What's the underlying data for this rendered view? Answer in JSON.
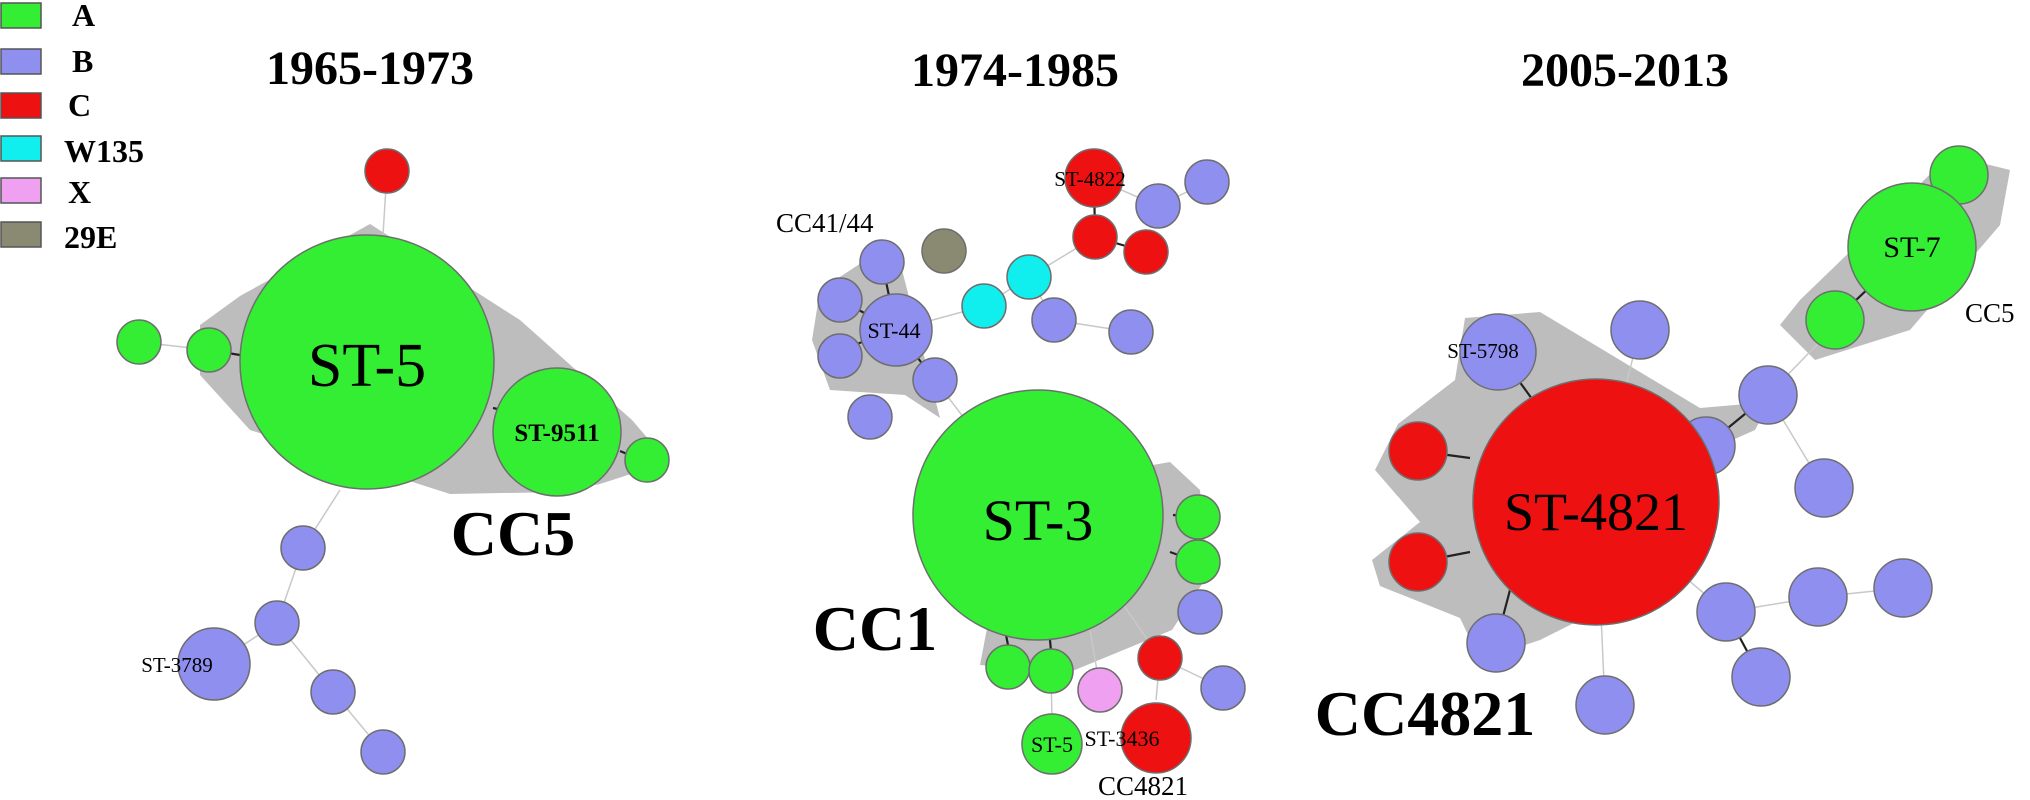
{
  "legend": [
    {
      "key": "A",
      "label": "A",
      "color": "#33ee33"
    },
    {
      "key": "B",
      "label": "B",
      "color": "#8f8ff0"
    },
    {
      "key": "C",
      "label": "C",
      "color": "#ee1111"
    },
    {
      "key": "W135",
      "label": "W135",
      "color": "#11eeee"
    },
    {
      "key": "X",
      "label": "X",
      "color": "#f0a0f0"
    },
    {
      "key": "29E",
      "label": "29E",
      "color": "#8a8a72"
    }
  ],
  "panels": [
    {
      "title": "1965-1973",
      "complex_label": "CC5",
      "types": [
        "ST-5",
        "ST-9511",
        "ST-3789"
      ]
    },
    {
      "title": "1974-1985",
      "complex_label": "CC1",
      "annotations": [
        "CC41/44",
        "CC4821"
      ],
      "types": [
        "ST-3",
        "ST-44",
        "ST-4822",
        "ST-5",
        "ST-3436"
      ]
    },
    {
      "title": "2005-2013",
      "complex_label": "CC4821",
      "annotations": [
        "CC5"
      ],
      "types": [
        "ST-4821",
        "ST-5798",
        "ST-7"
      ]
    }
  ]
}
